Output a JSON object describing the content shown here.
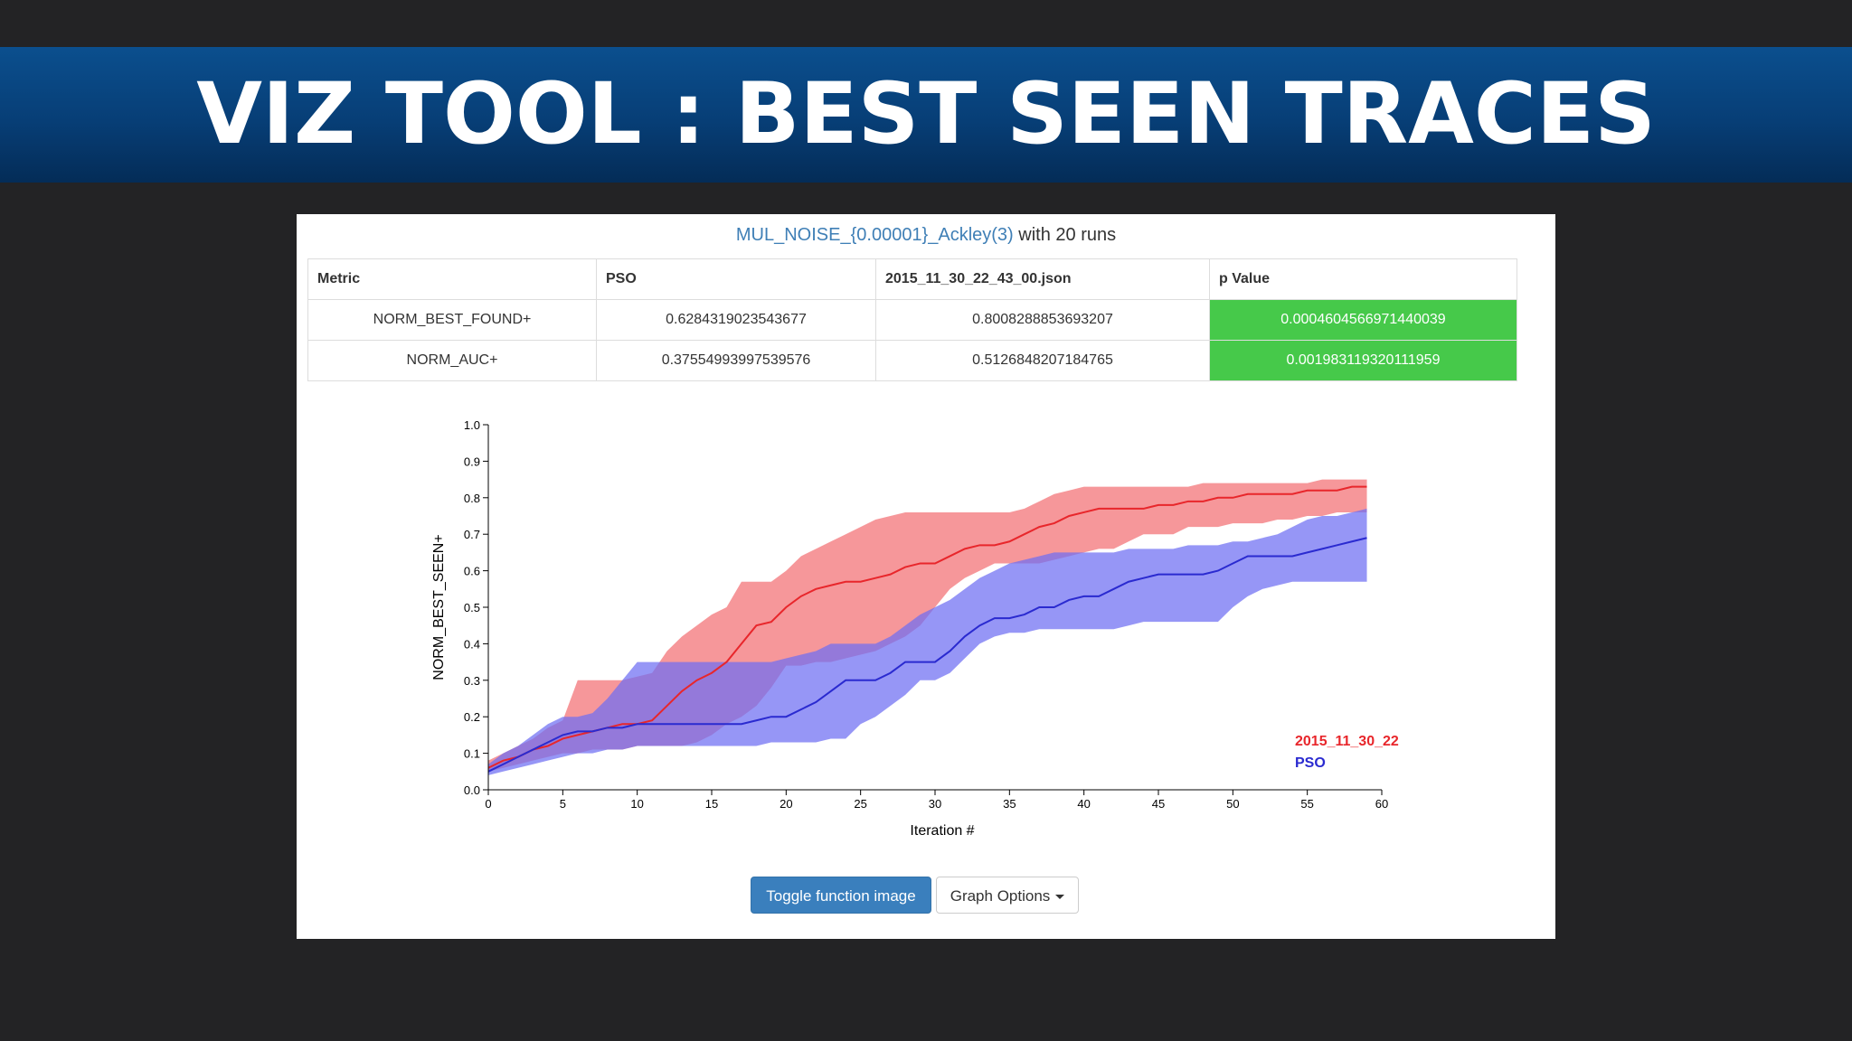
{
  "slide": {
    "title": "VIZ TOOL : BEST SEEN TRACES"
  },
  "panel": {
    "heading_link": "MUL_NOISE_{0.00001}_Ackley(3)",
    "heading_suffix": "with 20 runs"
  },
  "table": {
    "headers": [
      "Metric",
      "PSO",
      "2015_11_30_22_43_00.json",
      "p Value"
    ],
    "rows": [
      [
        "NORM_BEST_FOUND+",
        "0.6284319023543677",
        "0.8008288853693207",
        "0.0004604566971440039"
      ],
      [
        "NORM_AUC+",
        "0.37554993997539576",
        "0.5126848207184765",
        "0.001983119320111959"
      ]
    ],
    "significant_color": "#46c94a"
  },
  "buttons": {
    "toggle": "Toggle function image",
    "options": "Graph Options"
  },
  "chart_data": {
    "type": "line",
    "title": "",
    "xlabel": "Iteration #",
    "ylabel": "NORM_BEST_SEEN+",
    "xlim": [
      0,
      60
    ],
    "ylim": [
      0,
      1.0
    ],
    "xticks": [
      0,
      5,
      10,
      15,
      20,
      25,
      30,
      35,
      40,
      45,
      50,
      55,
      60
    ],
    "yticks": [
      "0.0",
      "0.1",
      "0.2",
      "0.3",
      "0.4",
      "0.5",
      "0.6",
      "0.7",
      "0.8",
      "0.9",
      "1.0"
    ],
    "grid": false,
    "legend_position": "bottom-right",
    "series": [
      {
        "name": "2015_11_30_22",
        "color": "#e8262b",
        "band_color": "#f26b6f",
        "x": [
          0,
          1,
          2,
          3,
          4,
          5,
          6,
          7,
          8,
          9,
          10,
          11,
          12,
          13,
          14,
          15,
          16,
          17,
          18,
          19,
          20,
          21,
          22,
          23,
          24,
          25,
          26,
          27,
          28,
          29,
          30,
          31,
          32,
          33,
          34,
          35,
          36,
          37,
          38,
          39,
          40,
          41,
          42,
          43,
          44,
          45,
          46,
          47,
          48,
          49,
          50,
          51,
          52,
          53,
          54,
          55,
          56,
          57,
          58,
          59
        ],
        "mean": [
          0.06,
          0.08,
          0.09,
          0.11,
          0.12,
          0.14,
          0.15,
          0.16,
          0.17,
          0.18,
          0.18,
          0.19,
          0.23,
          0.27,
          0.3,
          0.32,
          0.35,
          0.4,
          0.45,
          0.46,
          0.5,
          0.53,
          0.55,
          0.56,
          0.57,
          0.57,
          0.58,
          0.59,
          0.61,
          0.62,
          0.62,
          0.64,
          0.66,
          0.67,
          0.67,
          0.68,
          0.7,
          0.72,
          0.73,
          0.75,
          0.76,
          0.77,
          0.77,
          0.77,
          0.77,
          0.78,
          0.78,
          0.79,
          0.79,
          0.8,
          0.8,
          0.81,
          0.81,
          0.81,
          0.81,
          0.82,
          0.82,
          0.82,
          0.83,
          0.83
        ],
        "upper": [
          0.08,
          0.1,
          0.12,
          0.14,
          0.17,
          0.19,
          0.3,
          0.3,
          0.3,
          0.3,
          0.31,
          0.32,
          0.38,
          0.42,
          0.45,
          0.48,
          0.5,
          0.57,
          0.57,
          0.57,
          0.6,
          0.64,
          0.66,
          0.68,
          0.7,
          0.72,
          0.74,
          0.75,
          0.76,
          0.76,
          0.76,
          0.76,
          0.76,
          0.76,
          0.76,
          0.76,
          0.77,
          0.79,
          0.81,
          0.82,
          0.83,
          0.83,
          0.83,
          0.83,
          0.83,
          0.83,
          0.83,
          0.83,
          0.84,
          0.84,
          0.84,
          0.84,
          0.84,
          0.84,
          0.84,
          0.84,
          0.85,
          0.85,
          0.85,
          0.85
        ],
        "lower": [
          0.05,
          0.06,
          0.07,
          0.08,
          0.09,
          0.1,
          0.1,
          0.11,
          0.11,
          0.11,
          0.12,
          0.12,
          0.12,
          0.12,
          0.13,
          0.15,
          0.18,
          0.2,
          0.23,
          0.28,
          0.34,
          0.34,
          0.35,
          0.35,
          0.36,
          0.37,
          0.38,
          0.4,
          0.42,
          0.45,
          0.5,
          0.55,
          0.58,
          0.6,
          0.62,
          0.62,
          0.62,
          0.62,
          0.63,
          0.64,
          0.65,
          0.66,
          0.66,
          0.68,
          0.7,
          0.7,
          0.7,
          0.72,
          0.72,
          0.72,
          0.73,
          0.73,
          0.73,
          0.74,
          0.74,
          0.75,
          0.75,
          0.76,
          0.76,
          0.76
        ]
      },
      {
        "name": "PSO",
        "color": "#2a2ad0",
        "band_color": "#6e6ef2",
        "x": [
          0,
          1,
          2,
          3,
          4,
          5,
          6,
          7,
          8,
          9,
          10,
          11,
          12,
          13,
          14,
          15,
          16,
          17,
          18,
          19,
          20,
          21,
          22,
          23,
          24,
          25,
          26,
          27,
          28,
          29,
          30,
          31,
          32,
          33,
          34,
          35,
          36,
          37,
          38,
          39,
          40,
          41,
          42,
          43,
          44,
          45,
          46,
          47,
          48,
          49,
          50,
          51,
          52,
          53,
          54,
          55,
          56,
          57,
          58,
          59
        ],
        "mean": [
          0.05,
          0.07,
          0.09,
          0.11,
          0.13,
          0.15,
          0.16,
          0.16,
          0.17,
          0.17,
          0.18,
          0.18,
          0.18,
          0.18,
          0.18,
          0.18,
          0.18,
          0.18,
          0.19,
          0.2,
          0.2,
          0.22,
          0.24,
          0.27,
          0.3,
          0.3,
          0.3,
          0.32,
          0.35,
          0.35,
          0.35,
          0.38,
          0.42,
          0.45,
          0.47,
          0.47,
          0.48,
          0.5,
          0.5,
          0.52,
          0.53,
          0.53,
          0.55,
          0.57,
          0.58,
          0.59,
          0.59,
          0.59,
          0.59,
          0.6,
          0.62,
          0.64,
          0.64,
          0.64,
          0.64,
          0.65,
          0.66,
          0.67,
          0.68,
          0.69
        ],
        "upper": [
          0.07,
          0.1,
          0.12,
          0.15,
          0.18,
          0.2,
          0.2,
          0.21,
          0.25,
          0.3,
          0.35,
          0.35,
          0.35,
          0.35,
          0.35,
          0.35,
          0.35,
          0.35,
          0.35,
          0.35,
          0.36,
          0.37,
          0.38,
          0.4,
          0.4,
          0.4,
          0.4,
          0.42,
          0.45,
          0.48,
          0.5,
          0.52,
          0.55,
          0.58,
          0.6,
          0.62,
          0.63,
          0.64,
          0.65,
          0.65,
          0.65,
          0.65,
          0.65,
          0.66,
          0.66,
          0.66,
          0.66,
          0.67,
          0.67,
          0.67,
          0.68,
          0.68,
          0.69,
          0.7,
          0.72,
          0.74,
          0.75,
          0.75,
          0.76,
          0.77
        ],
        "lower": [
          0.04,
          0.05,
          0.06,
          0.07,
          0.08,
          0.09,
          0.1,
          0.1,
          0.11,
          0.11,
          0.12,
          0.12,
          0.12,
          0.12,
          0.12,
          0.12,
          0.12,
          0.12,
          0.12,
          0.13,
          0.13,
          0.13,
          0.13,
          0.14,
          0.14,
          0.18,
          0.2,
          0.23,
          0.26,
          0.3,
          0.3,
          0.32,
          0.36,
          0.4,
          0.42,
          0.43,
          0.43,
          0.44,
          0.44,
          0.44,
          0.44,
          0.44,
          0.44,
          0.45,
          0.46,
          0.46,
          0.46,
          0.46,
          0.46,
          0.46,
          0.5,
          0.53,
          0.55,
          0.56,
          0.57,
          0.57,
          0.57,
          0.57,
          0.57,
          0.57
        ]
      }
    ]
  }
}
